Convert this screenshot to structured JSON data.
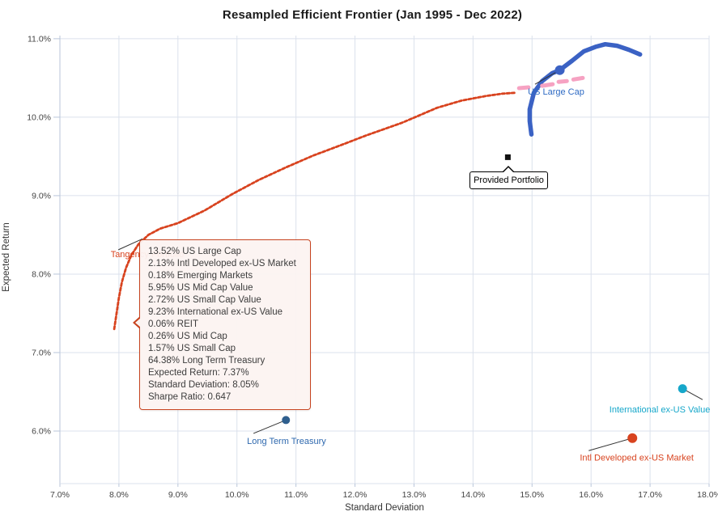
{
  "chart_data": {
    "type": "scatter",
    "title": "Resampled Efficient Frontier (Jan 1995 - Dec 2022)",
    "xlabel": "Standard Deviation",
    "ylabel": "Expected Return",
    "xlim": [
      7,
      18
    ],
    "ylim": [
      5.33,
      11.04
    ],
    "grid": true,
    "legend": "none",
    "x_ticks": {
      "values": [
        7,
        8,
        9,
        10,
        11,
        12,
        13,
        14,
        15,
        16,
        17,
        18
      ],
      "labels": [
        "7.0%",
        "8.0%",
        "9.0%",
        "10.0%",
        "11.0%",
        "12.0%",
        "13.0%",
        "14.0%",
        "15.0%",
        "16.0%",
        "17.0%",
        "18.0%"
      ]
    },
    "y_ticks": {
      "values": [
        6,
        7,
        8,
        9,
        10,
        11
      ],
      "labels": [
        "6.0%",
        "7.0%",
        "8.0%",
        "9.0%",
        "10.0%",
        "11.0%"
      ]
    },
    "colors": {
      "grid": "#dbe1ec",
      "axis": "#b9c6da",
      "tick_text": "#444444",
      "annotation_line": "#333333"
    },
    "series": [
      {
        "id": "resampled-efficient-frontier",
        "type": "line",
        "style": "dashed",
        "color": "#d8431f",
        "width": 2.8,
        "points": [
          [
            7.92,
            7.3
          ],
          [
            7.96,
            7.5
          ],
          [
            8.0,
            7.7
          ],
          [
            8.05,
            7.9
          ],
          [
            8.12,
            8.08
          ],
          [
            8.21,
            8.24
          ],
          [
            8.33,
            8.38
          ],
          [
            8.5,
            8.5
          ],
          [
            8.7,
            8.58
          ],
          [
            9.0,
            8.65
          ],
          [
            9.45,
            8.81
          ],
          [
            9.92,
            9.02
          ],
          [
            10.37,
            9.2
          ],
          [
            10.83,
            9.36
          ],
          [
            11.29,
            9.51
          ],
          [
            11.75,
            9.64
          ],
          [
            12.2,
            9.77
          ],
          [
            12.8,
            9.93
          ],
          [
            13.39,
            10.12
          ],
          [
            13.8,
            10.21
          ],
          [
            14.22,
            10.27
          ],
          [
            14.5,
            10.3
          ],
          [
            14.7,
            10.31
          ]
        ]
      },
      {
        "id": "us-large-cap-frontier",
        "type": "line",
        "style": "solid",
        "color": "#3b62c4",
        "width": 5.5,
        "points": [
          [
            14.99,
            9.78
          ],
          [
            14.96,
            9.95
          ],
          [
            14.96,
            10.1
          ],
          [
            15.03,
            10.31
          ],
          [
            15.17,
            10.46
          ],
          [
            15.34,
            10.56
          ],
          [
            15.47,
            10.6
          ],
          [
            15.68,
            10.72
          ],
          [
            15.88,
            10.84
          ],
          [
            16.09,
            10.9
          ],
          [
            16.24,
            10.93
          ],
          [
            16.44,
            10.91
          ],
          [
            16.64,
            10.86
          ],
          [
            16.83,
            10.8
          ]
        ]
      },
      {
        "id": "pink-dashed-segments",
        "type": "segments",
        "color": "#f6a2c2",
        "width": 5,
        "segments": [
          [
            14.78,
            10.37,
            14.94,
            10.38
          ],
          [
            15.17,
            10.4,
            15.35,
            10.42
          ],
          [
            15.45,
            10.45,
            15.59,
            10.46
          ],
          [
            15.7,
            10.48,
            15.86,
            10.5
          ]
        ]
      }
    ],
    "points": [
      {
        "id": "us-large-cap",
        "label": "US Large Cap",
        "marker": "circle",
        "size": 6,
        "color": "#3b62c4",
        "label_color": "#2f6bc4",
        "point": [
          15.47,
          10.6
        ],
        "line": [
          [
            15.47,
            10.6
          ],
          [
            15.05,
            10.42
          ]
        ],
        "label_pos": [
          14.93,
          10.36
        ],
        "anchor": "start"
      },
      {
        "id": "provided-portfolio",
        "label": "Provided Portfolio",
        "marker": "square",
        "size": 7,
        "color": "#111111",
        "point": [
          14.59,
          9.49
        ],
        "line": null,
        "label_pos": null
      },
      {
        "id": "long-term-treasury",
        "label": "Long Term Treasury",
        "marker": "circle",
        "size": 5,
        "color": "#2f5f8e",
        "label_color": "#2e68ae",
        "point": [
          10.83,
          6.14
        ],
        "line": [
          [
            10.83,
            6.14
          ],
          [
            10.28,
            5.97
          ]
        ],
        "label_pos": [
          10.17,
          5.91
        ],
        "anchor": "start"
      },
      {
        "id": "international-ex-us-value",
        "label": "International ex-US Value",
        "marker": "circle",
        "size": 5.5,
        "color": "#16a7ca",
        "label_color": "#16a7ca",
        "point": [
          17.55,
          6.54
        ],
        "line": [
          [
            17.55,
            6.54
          ],
          [
            17.89,
            6.4
          ]
        ],
        "label_pos": [
          16.31,
          6.31
        ],
        "anchor": "start"
      },
      {
        "id": "intl-developed-ex-us-market",
        "label": "Intl Developed ex-US Market",
        "marker": "circle",
        "size": 6,
        "color": "#d8431f",
        "label_color": "#d8431f",
        "point": [
          16.7,
          5.91
        ],
        "line": [
          [
            16.7,
            5.91
          ],
          [
            15.96,
            5.75
          ]
        ],
        "label_pos": [
          15.81,
          5.7
        ],
        "anchor": "start"
      },
      {
        "id": "tangency-portfolio",
        "label": "Tangency Portfolio",
        "marker": "none",
        "size": 0,
        "color": "#d8431f",
        "label_color": "#d8431f",
        "point": [
          8.05,
          7.37
        ],
        "line": [
          [
            7.99,
            8.31
          ],
          [
            8.4,
            8.45
          ]
        ],
        "label_pos": [
          7.86,
          8.29
        ],
        "anchor": "start"
      }
    ]
  },
  "tooltip": {
    "lines": [
      "13.52% US Large Cap",
      "2.13% Intl Developed ex-US Market",
      "0.18% Emerging Markets",
      "5.95% US Mid Cap Value",
      "2.72% US Small Cap Value",
      "9.23% International ex-US Value",
      "0.06% REIT",
      "0.26% US Mid Cap",
      "1.57% US Small Cap",
      "64.38% Long Term Treasury",
      "Expected Return: 7.37%",
      "Standard Deviation: 8.05%",
      "Sharpe Ratio: 0.647"
    ]
  }
}
